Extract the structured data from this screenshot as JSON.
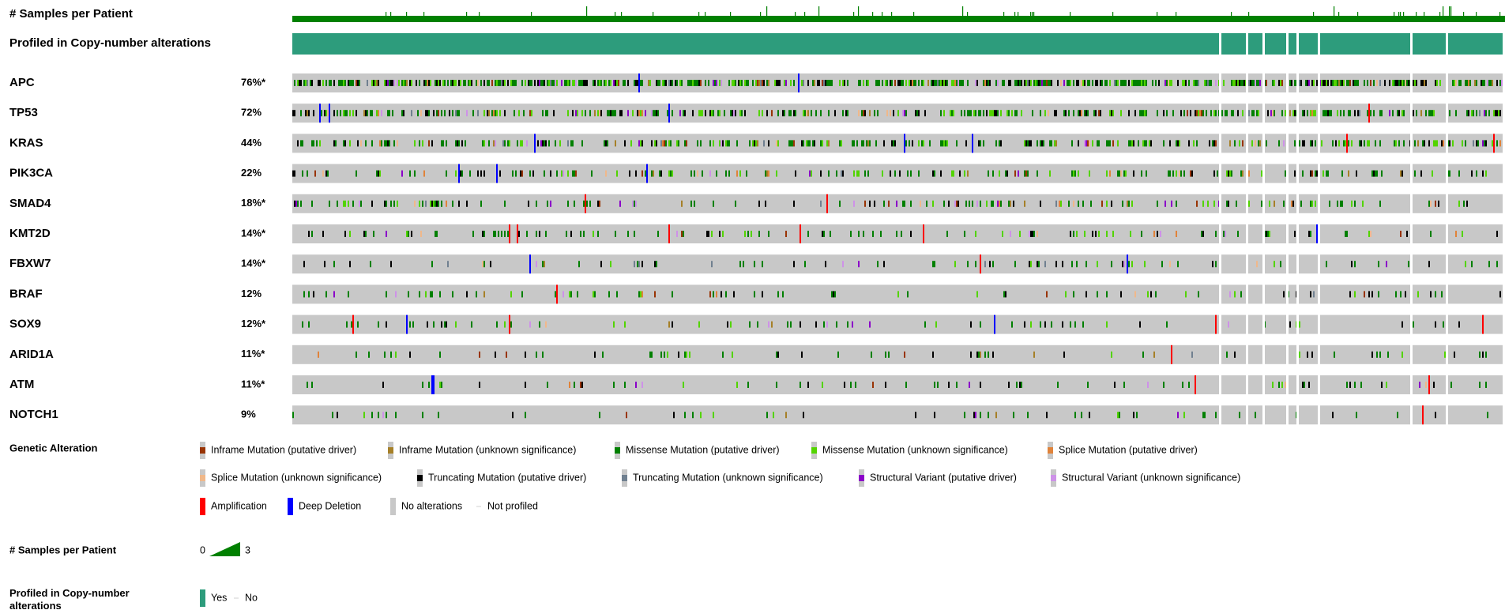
{
  "tracks": [
    {
      "label": "# Samples per Patient"
    },
    {
      "label": "Profiled in Copy-number alterations"
    }
  ],
  "genes": [
    {
      "name": "APC",
      "percent": "76%*"
    },
    {
      "name": "TP53",
      "percent": "72%"
    },
    {
      "name": "KRAS",
      "percent": "44%"
    },
    {
      "name": "PIK3CA",
      "percent": "22%"
    },
    {
      "name": "SMAD4",
      "percent": "18%*"
    },
    {
      "name": "KMT2D",
      "percent": "14%*"
    },
    {
      "name": "FBXW7",
      "percent": "14%*"
    },
    {
      "name": "BRAF",
      "percent": "12%"
    },
    {
      "name": "SOX9",
      "percent": "12%*"
    },
    {
      "name": "ARID1A",
      "percent": "11%*"
    },
    {
      "name": "ATM",
      "percent": "11%*"
    },
    {
      "name": "NOTCH1",
      "percent": "9%"
    }
  ],
  "legend": {
    "genetic_alteration": {
      "title": "Genetic Alteration",
      "items": [
        {
          "label": "Inframe Mutation (putative driver)",
          "color": "#993404"
        },
        {
          "label": "Inframe Mutation (unknown significance)",
          "color": "#a68028"
        },
        {
          "label": "Missense Mutation (putative driver)",
          "color": "#008000"
        },
        {
          "label": "Missense Mutation (unknown significance)",
          "color": "#53d400"
        },
        {
          "label": "Splice Mutation (putative driver)",
          "color": "#e0833a"
        },
        {
          "label": "Splice Mutation (unknown significance)",
          "color": "#f0b88a"
        },
        {
          "label": "Truncating Mutation (putative driver)",
          "color": "#000000"
        },
        {
          "label": "Truncating Mutation (unknown significance)",
          "color": "#708090"
        },
        {
          "label": "Structural Variant (putative driver)",
          "color": "#8b00c9"
        },
        {
          "label": "Structural Variant (unknown significance)",
          "color": "#ce92e8"
        },
        {
          "label": "Amplification",
          "color": "#ff0000"
        },
        {
          "label": "Deep Deletion",
          "color": "#0000ff"
        },
        {
          "label": "No alterations",
          "color": "#c8c8c8"
        },
        {
          "label": "Not profiled",
          "color": "#d0d0d0"
        }
      ]
    },
    "samples": {
      "title": "# Samples per Patient",
      "scale": [
        0,
        3
      ],
      "color": "#008000"
    },
    "profiled": {
      "title": "Profiled in Copy-number alterations",
      "items": [
        {
          "label": "Yes",
          "color": "#2d9c7c"
        },
        {
          "label": "No",
          "color": "#d0d0d0"
        }
      ]
    }
  }
}
